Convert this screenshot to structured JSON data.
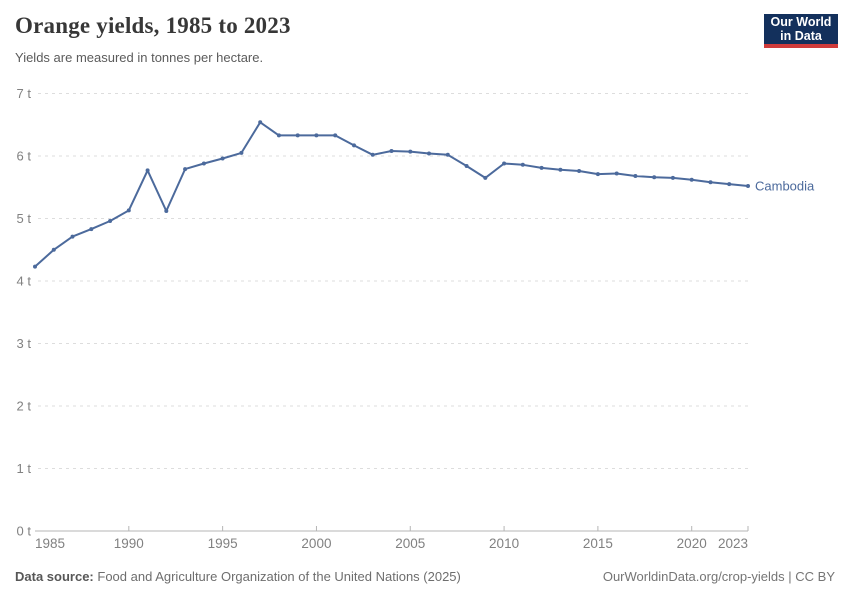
{
  "header": {
    "title": "Orange yields, 1985 to 2023",
    "subtitle": "Yields are measured in tonnes per hectare."
  },
  "logo": {
    "line1": "Our World",
    "line2": "in Data"
  },
  "chart_data": {
    "type": "line",
    "title": "Orange yields, 1985 to 2023",
    "unit": "tonnes per hectare",
    "x": [
      1985,
      1986,
      1987,
      1988,
      1989,
      1990,
      1991,
      1992,
      1993,
      1994,
      1995,
      1996,
      1997,
      1998,
      1999,
      2000,
      2001,
      2002,
      2003,
      2004,
      2005,
      2006,
      2007,
      2008,
      2009,
      2010,
      2011,
      2012,
      2013,
      2014,
      2015,
      2016,
      2017,
      2018,
      2019,
      2020,
      2021,
      2022,
      2023
    ],
    "series": [
      {
        "name": "Cambodia",
        "color": "#4C6A9C",
        "values": [
          4.23,
          4.5,
          4.71,
          4.83,
          4.96,
          5.13,
          5.77,
          5.12,
          5.79,
          5.88,
          5.96,
          6.05,
          6.54,
          6.33,
          6.33,
          6.33,
          6.33,
          6.17,
          6.02,
          6.08,
          6.07,
          6.04,
          6.02,
          5.84,
          5.65,
          5.88,
          5.86,
          5.81,
          5.78,
          5.76,
          5.71,
          5.72,
          5.68,
          5.66,
          5.65,
          5.62,
          5.58,
          5.55,
          5.52
        ]
      }
    ],
    "xlabel": "",
    "ylabel": "",
    "ylim": [
      0,
      7
    ],
    "yticks": [
      0,
      1,
      2,
      3,
      4,
      5,
      6,
      7
    ],
    "ytick_suffix": " t",
    "xticks": [
      1985,
      1990,
      1995,
      2000,
      2005,
      2010,
      2015,
      2020,
      2023
    ],
    "grid": "horizontal-dashed",
    "legend_position": "line-end-label"
  },
  "footer": {
    "source_label": "Data source:",
    "source_text": "Food and Agriculture Organization of the United Nations (2025)",
    "license_text": "OurWorldinData.org/crop-yields | CC BY"
  },
  "colors": {
    "line": "#4C6A9C",
    "logo_bg": "#13305C",
    "logo_accent": "#CF3B3B",
    "grid": "#DDDDDD",
    "axis": "#B5B5B5",
    "tick_text": "#818181"
  }
}
